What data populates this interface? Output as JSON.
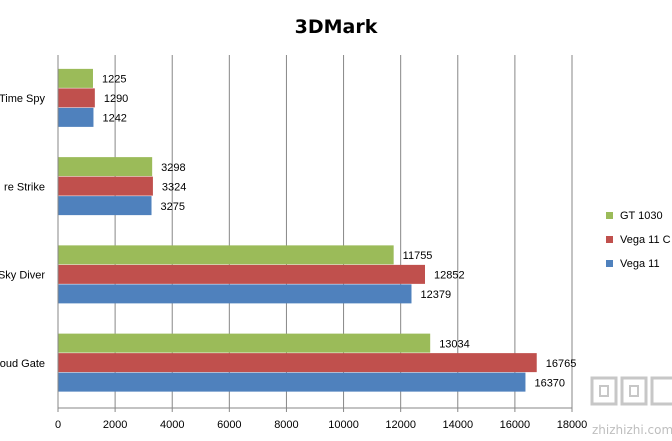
{
  "chart_data": {
    "type": "bar",
    "orientation": "horizontal",
    "title": "3DMark",
    "categories": [
      "Time Spy",
      "Fire Strike",
      "Sky Diver",
      "Cloud Gate"
    ],
    "category_labels_visible": [
      "Time Spy",
      "re Strike",
      "Sky Diver",
      "oud Gate"
    ],
    "series": [
      {
        "name": "GT 1030",
        "color": "#9BBB59",
        "values": [
          1225,
          3298,
          11755,
          13034
        ]
      },
      {
        "name": "Vega 11 C",
        "color": "#C0504D",
        "values": [
          1290,
          3324,
          12852,
          16765
        ]
      },
      {
        "name": "Vega 11",
        "color": "#4F81BD",
        "values": [
          1242,
          3275,
          12379,
          16370
        ]
      }
    ],
    "xlim": [
      0,
      18000
    ],
    "xticks": [
      0,
      2000,
      4000,
      6000,
      8000,
      10000,
      12000,
      14000,
      16000,
      18000
    ],
    "grid": true,
    "legend_position": "right",
    "watermark": "zhizhizhi.com"
  }
}
